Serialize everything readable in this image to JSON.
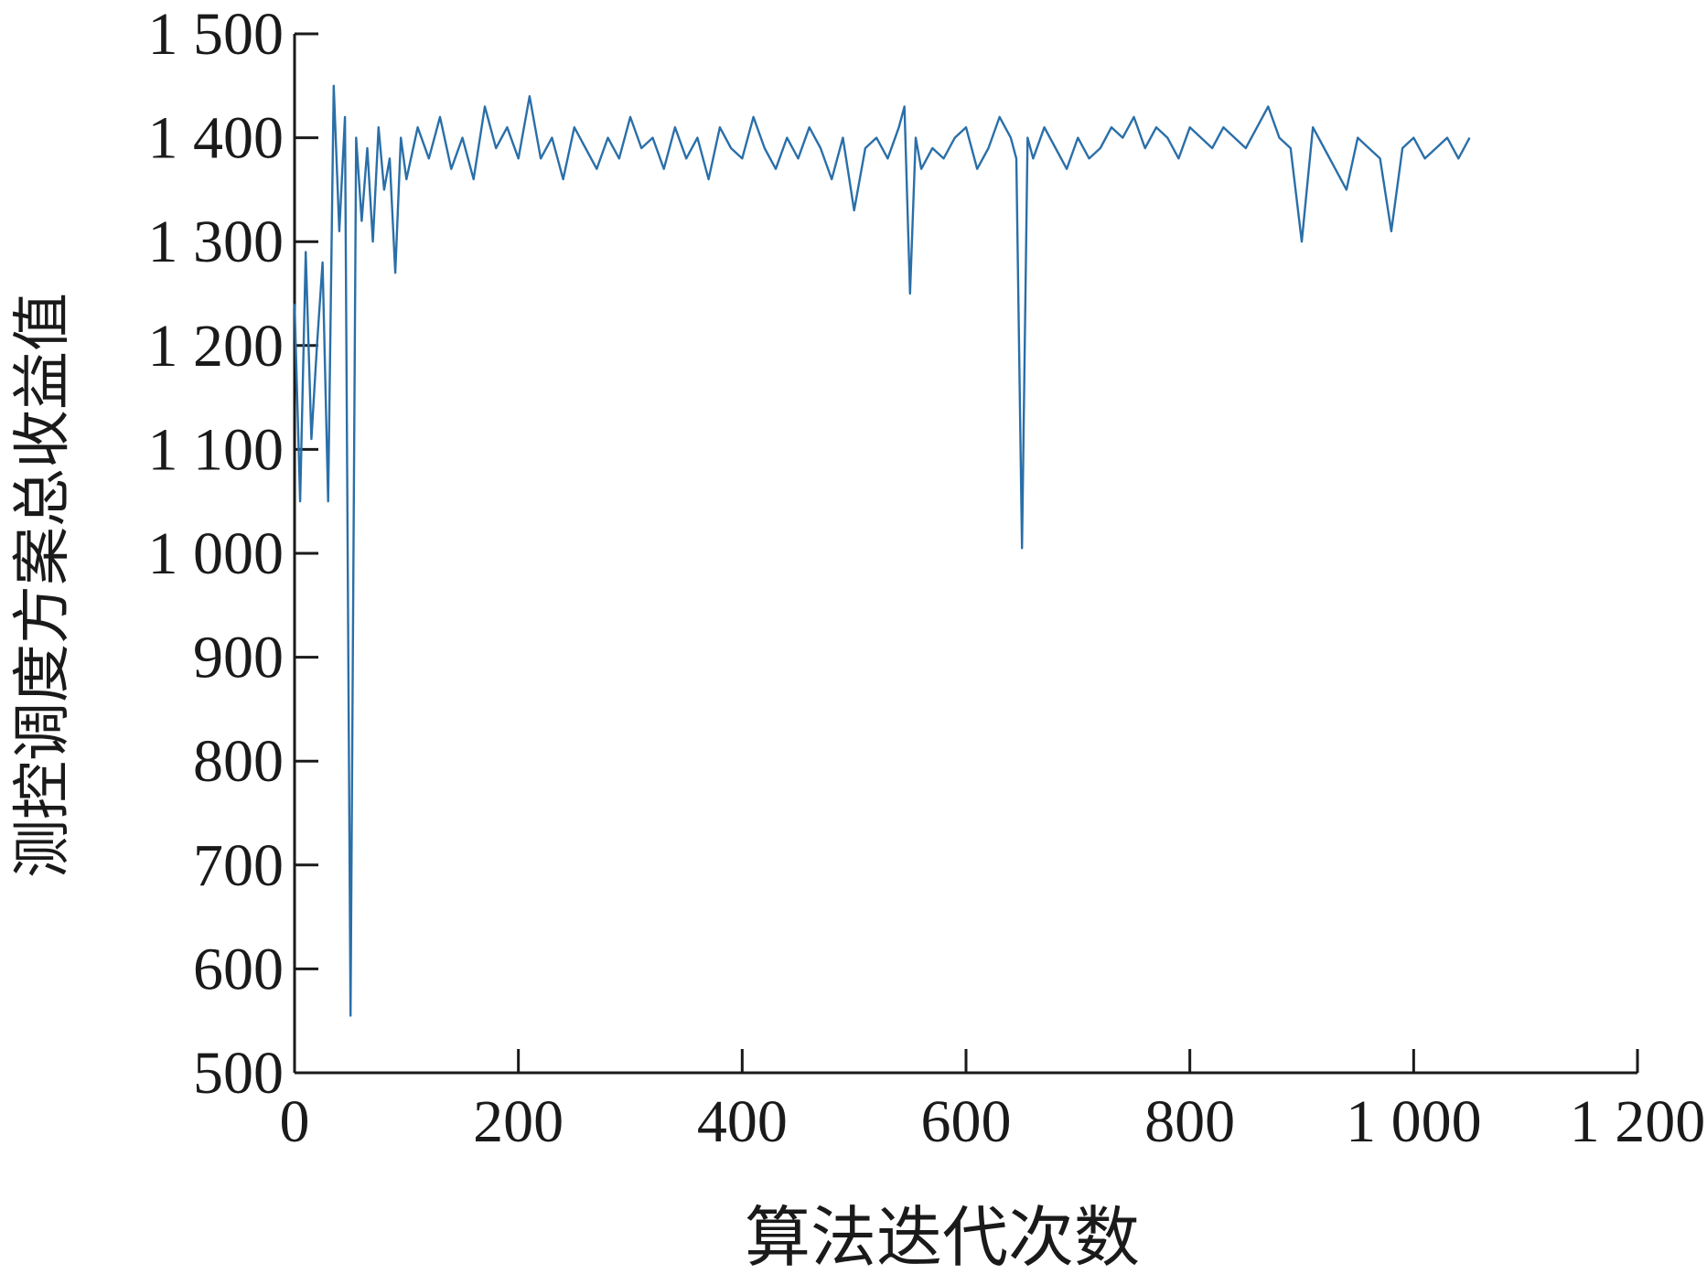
{
  "chart_data": {
    "type": "line",
    "title": "",
    "xlabel": "算法迭代次数",
    "ylabel": "测控调度方案总收益值",
    "xlim": [
      0,
      1200
    ],
    "ylim": [
      500,
      1500
    ],
    "grid": false,
    "legend": "none",
    "line_color": "#2a6fa8",
    "x_ticks": [
      {
        "value": 0,
        "label": "0"
      },
      {
        "value": 200,
        "label": "200"
      },
      {
        "value": 400,
        "label": "400"
      },
      {
        "value": 600,
        "label": "600"
      },
      {
        "value": 800,
        "label": "800"
      },
      {
        "value": 1000,
        "label": "1 000"
      },
      {
        "value": 1200,
        "label": "1 200"
      }
    ],
    "y_ticks": [
      {
        "value": 500,
        "label": "500"
      },
      {
        "value": 600,
        "label": "600"
      },
      {
        "value": 700,
        "label": "700"
      },
      {
        "value": 800,
        "label": "800"
      },
      {
        "value": 900,
        "label": "900"
      },
      {
        "value": 1000,
        "label": "1 000"
      },
      {
        "value": 1100,
        "label": "1 100"
      },
      {
        "value": 1200,
        "label": "1 200"
      },
      {
        "value": 1300,
        "label": "1 300"
      },
      {
        "value": 1400,
        "label": "1 400"
      },
      {
        "value": 1500,
        "label": "1 500"
      }
    ],
    "series": [
      {
        "x": [
          0,
          5,
          10,
          15,
          20,
          25,
          30,
          35,
          40,
          45,
          50,
          55,
          60,
          65,
          70,
          75,
          80,
          85,
          90,
          95,
          100,
          110,
          120,
          130,
          140,
          150,
          160,
          170,
          180,
          190,
          200,
          210,
          220,
          230,
          240,
          250,
          260,
          270,
          280,
          290,
          300,
          310,
          320,
          330,
          340,
          350,
          360,
          370,
          380,
          390,
          400,
          410,
          420,
          430,
          440,
          450,
          460,
          470,
          480,
          490,
          500,
          510,
          520,
          530,
          540,
          545,
          550,
          555,
          560,
          570,
          580,
          590,
          600,
          610,
          620,
          630,
          640,
          645,
          650,
          655,
          660,
          670,
          680,
          690,
          700,
          710,
          720,
          730,
          740,
          750,
          760,
          770,
          780,
          790,
          800,
          810,
          820,
          830,
          840,
          850,
          860,
          870,
          880,
          890,
          900,
          910,
          920,
          930,
          940,
          950,
          960,
          970,
          980,
          990,
          1000,
          1010,
          1020,
          1030,
          1040,
          1050
        ],
        "y": [
          1240,
          1050,
          1290,
          1110,
          1200,
          1280,
          1050,
          1450,
          1310,
          1420,
          555,
          1400,
          1320,
          1390,
          1300,
          1410,
          1350,
          1380,
          1270,
          1400,
          1360,
          1410,
          1380,
          1420,
          1370,
          1400,
          1360,
          1430,
          1390,
          1410,
          1380,
          1440,
          1380,
          1400,
          1360,
          1410,
          1390,
          1370,
          1400,
          1380,
          1420,
          1390,
          1400,
          1370,
          1410,
          1380,
          1400,
          1360,
          1410,
          1390,
          1380,
          1420,
          1390,
          1370,
          1400,
          1380,
          1410,
          1390,
          1360,
          1400,
          1330,
          1390,
          1400,
          1380,
          1410,
          1430,
          1250,
          1400,
          1370,
          1390,
          1380,
          1400,
          1410,
          1370,
          1390,
          1420,
          1400,
          1380,
          1005,
          1400,
          1380,
          1410,
          1390,
          1370,
          1400,
          1380,
          1390,
          1410,
          1400,
          1420,
          1390,
          1410,
          1400,
          1380,
          1410,
          1400,
          1390,
          1410,
          1400,
          1390,
          1410,
          1430,
          1400,
          1390,
          1300,
          1410,
          1390,
          1370,
          1350,
          1400,
          1390,
          1380,
          1310,
          1390,
          1400,
          1380,
          1390,
          1400,
          1380,
          1400
        ]
      }
    ]
  }
}
